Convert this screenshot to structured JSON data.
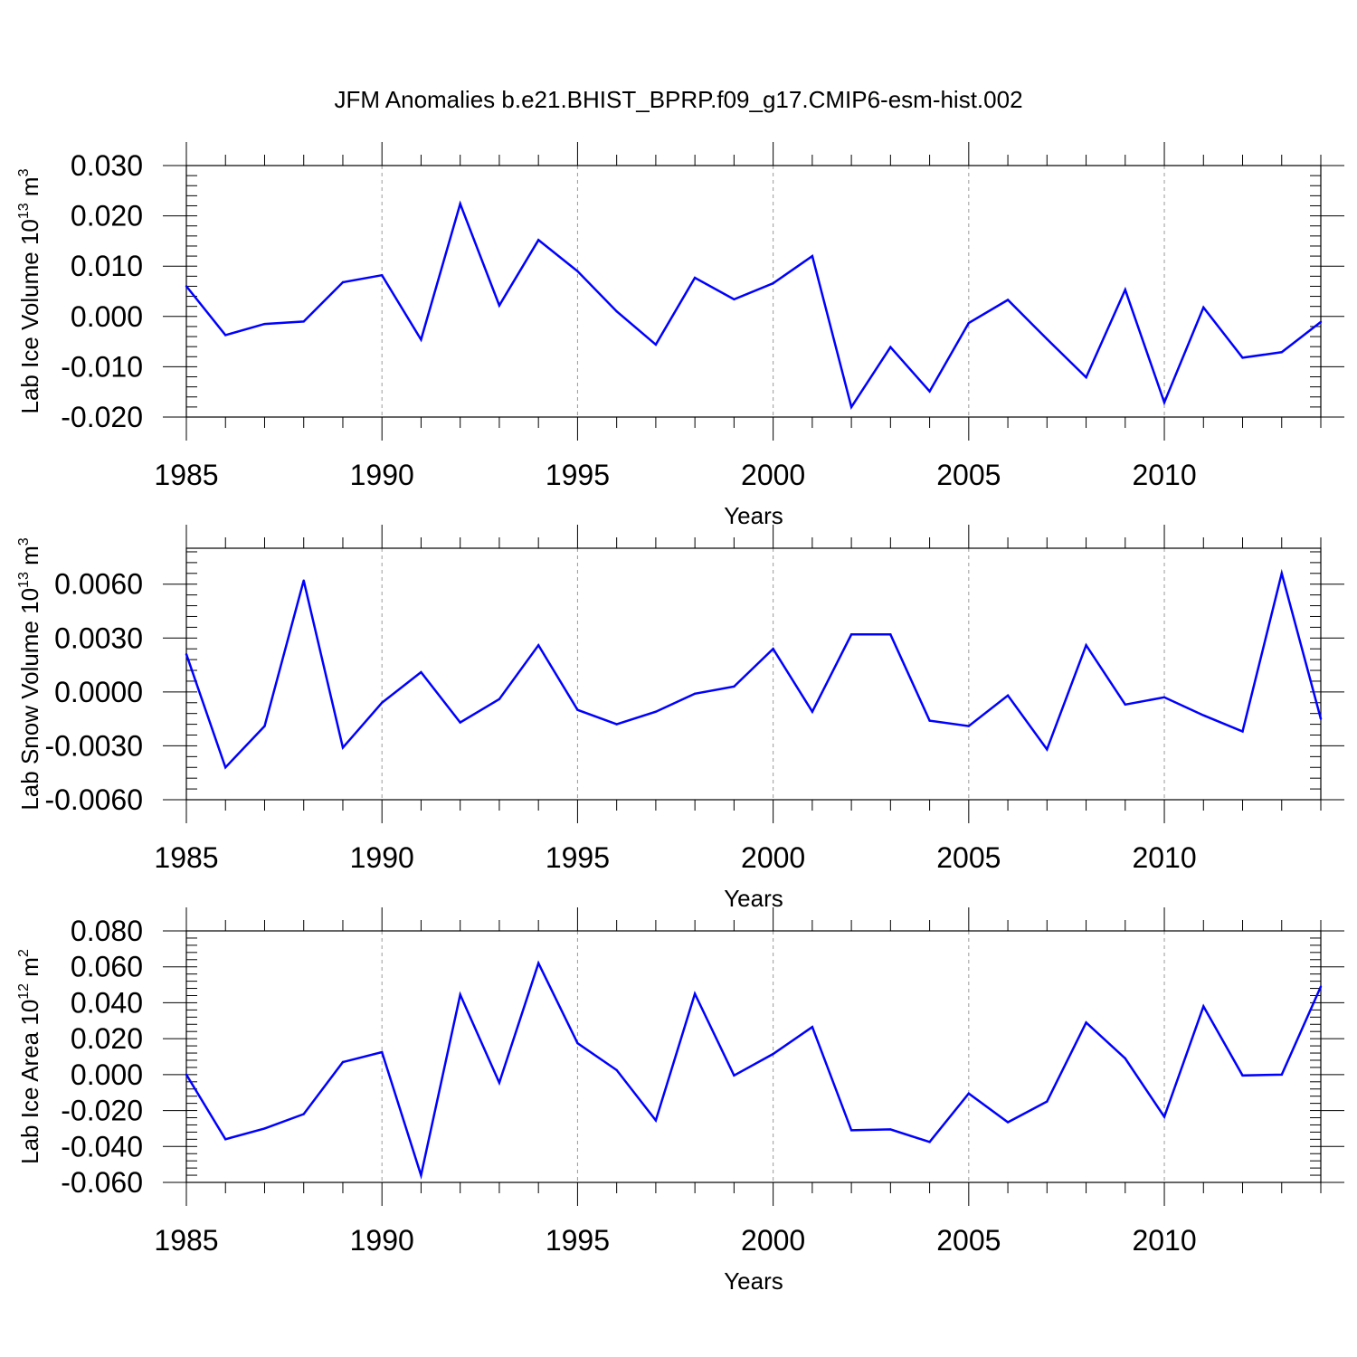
{
  "title": "JFM Anomalies b.e21.BHIST_BPRP.f09_g17.CMIP6-esm-hist.002",
  "colors": {
    "line": "#0000ff",
    "axis": "#000000",
    "grid": "#9a9a9a"
  },
  "chart_data": [
    {
      "type": "line",
      "name": "ice-volume",
      "xlabel": "Years",
      "ylabel": {
        "main": "Lab Ice Volume 10",
        "exp": "13",
        "unit": " m",
        "unit_exp": "3"
      },
      "xlim": [
        1985,
        2014
      ],
      "ylim": [
        -0.02,
        0.03
      ],
      "x_ticks": [
        1985,
        1990,
        1995,
        2000,
        2005,
        2010
      ],
      "x_tick_labels": [
        "1985",
        "1990",
        "1995",
        "2000",
        "2005",
        "2010"
      ],
      "y_ticks": [
        -0.02,
        -0.01,
        0.0,
        0.01,
        0.02,
        0.03
      ],
      "y_tick_labels": [
        "-0.020",
        "-0.010",
        "0.000",
        "0.010",
        "0.020",
        "0.030"
      ],
      "grid_years": [
        1990,
        1995,
        2000,
        2005,
        2010
      ],
      "x": [
        1985,
        1986,
        1987,
        1988,
        1989,
        1990,
        1991,
        1992,
        1993,
        1994,
        1995,
        1996,
        1997,
        1998,
        1999,
        2000,
        2001,
        2002,
        2003,
        2004,
        2005,
        2006,
        2007,
        2008,
        2009,
        2010,
        2011,
        2012,
        2013,
        2014
      ],
      "values": [
        0.006,
        -0.0037,
        -0.0015,
        -0.001,
        0.0068,
        0.0082,
        -0.0046,
        0.0224,
        0.0022,
        0.0152,
        0.009,
        0.001,
        -0.0056,
        0.0077,
        0.0034,
        0.0066,
        0.012,
        -0.018,
        -0.0061,
        -0.0149,
        -0.0013,
        0.0033,
        -0.0045,
        -0.0121,
        0.0053,
        -0.0171,
        0.0018,
        -0.0082,
        -0.0071,
        -0.0011
      ]
    },
    {
      "type": "line",
      "name": "snow-volume",
      "xlabel": "Years",
      "ylabel": {
        "main": "Lab Snow Volume 10",
        "exp": "13",
        "unit": " m",
        "unit_exp": "3"
      },
      "xlim": [
        1985,
        2014
      ],
      "ylim": [
        -0.006,
        0.008
      ],
      "x_ticks": [
        1985,
        1990,
        1995,
        2000,
        2005,
        2010
      ],
      "x_tick_labels": [
        "1985",
        "1990",
        "1995",
        "2000",
        "2005",
        "2010"
      ],
      "y_ticks": [
        -0.006,
        -0.003,
        0.0,
        0.003,
        0.006
      ],
      "y_tick_labels": [
        "-0.0060",
        "-0.0030",
        "0.0000",
        "0.0030",
        "0.0060"
      ],
      "grid_years": [
        1990,
        1995,
        2000,
        2005,
        2010
      ],
      "x": [
        1985,
        1986,
        1987,
        1988,
        1989,
        1990,
        1991,
        1992,
        1993,
        1994,
        1995,
        1996,
        1997,
        1998,
        1999,
        2000,
        2001,
        2002,
        2003,
        2004,
        2005,
        2006,
        2007,
        2008,
        2009,
        2010,
        2011,
        2012,
        2013,
        2014
      ],
      "values": [
        0.0021,
        -0.0042,
        -0.0019,
        0.0062,
        -0.0031,
        -0.0006,
        0.0011,
        -0.0017,
        -0.0004,
        0.0026,
        -0.001,
        -0.0018,
        -0.0011,
        -0.0001,
        0.0003,
        0.0024,
        -0.0011,
        0.0032,
        0.0032,
        -0.0016,
        -0.0019,
        -0.0002,
        -0.0032,
        0.0026,
        -0.0007,
        -0.0003,
        -0.0013,
        -0.0022,
        0.0066,
        -0.0015
      ]
    },
    {
      "type": "line",
      "name": "ice-area",
      "xlabel": "Years",
      "ylabel": {
        "main": "Lab Ice Area 10",
        "exp": "12",
        "unit": " m",
        "unit_exp": "2"
      },
      "xlim": [
        1985,
        2014
      ],
      "ylim": [
        -0.06,
        0.08
      ],
      "x_ticks": [
        1985,
        1990,
        1995,
        2000,
        2005,
        2010
      ],
      "x_tick_labels": [
        "1985",
        "1990",
        "1995",
        "2000",
        "2005",
        "2010"
      ],
      "y_ticks": [
        -0.06,
        -0.04,
        -0.02,
        0.0,
        0.02,
        0.04,
        0.06,
        0.08
      ],
      "y_tick_labels": [
        "-0.060",
        "-0.040",
        "-0.020",
        "0.000",
        "0.020",
        "0.040",
        "0.060",
        "0.080"
      ],
      "grid_years": [
        1990,
        1995,
        2000,
        2005,
        2010
      ],
      "x": [
        1985,
        1986,
        1987,
        1988,
        1989,
        1990,
        1991,
        1992,
        1993,
        1994,
        1995,
        1996,
        1997,
        1998,
        1999,
        2000,
        2001,
        2002,
        2003,
        2004,
        2005,
        2006,
        2007,
        2008,
        2009,
        2010,
        2011,
        2012,
        2013,
        2014
      ],
      "values": [
        0.0,
        -0.036,
        -0.03,
        -0.022,
        0.007,
        0.0125,
        -0.056,
        0.0445,
        -0.0045,
        0.062,
        0.0175,
        0.0025,
        -0.0255,
        0.045,
        -0.0005,
        0.0115,
        0.0265,
        -0.031,
        -0.0305,
        -0.0375,
        -0.0105,
        -0.0265,
        -0.015,
        0.029,
        0.009,
        -0.0235,
        0.038,
        -0.0005,
        0.0,
        0.049
      ]
    }
  ]
}
